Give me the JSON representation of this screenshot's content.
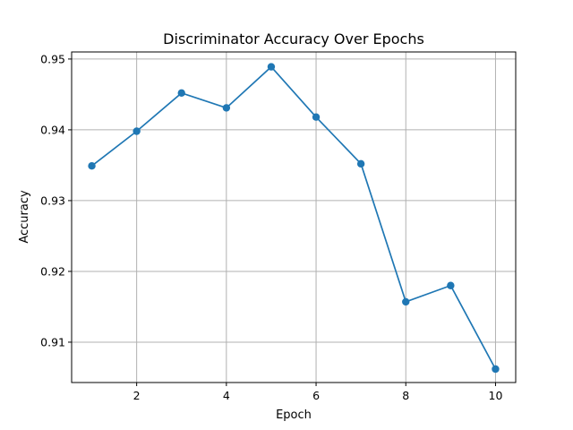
{
  "chart_data": {
    "type": "line",
    "title": "Discriminator Accuracy Over Epochs",
    "xlabel": "Epoch",
    "ylabel": "Accuracy",
    "xlim": [
      0.55,
      10.45
    ],
    "ylim": [
      0.9043,
      0.951
    ],
    "xticks": [
      2,
      4,
      6,
      8,
      10
    ],
    "yticks": [
      0.91,
      0.92,
      0.93,
      0.94,
      0.95
    ],
    "xtick_labels": [
      "2",
      "4",
      "6",
      "8",
      "10"
    ],
    "ytick_labels": [
      "0.91",
      "0.92",
      "0.93",
      "0.94",
      "0.95"
    ],
    "grid": true,
    "marker": "circle",
    "color": "#1f77b4",
    "series": [
      {
        "x": [
          1,
          2,
          3,
          4,
          5,
          6,
          7,
          8,
          9,
          10
        ],
        "values": [
          0.9349,
          0.9398,
          0.9452,
          0.9431,
          0.9489,
          0.9418,
          0.9352,
          0.9157,
          0.918,
          0.9062
        ]
      }
    ]
  }
}
